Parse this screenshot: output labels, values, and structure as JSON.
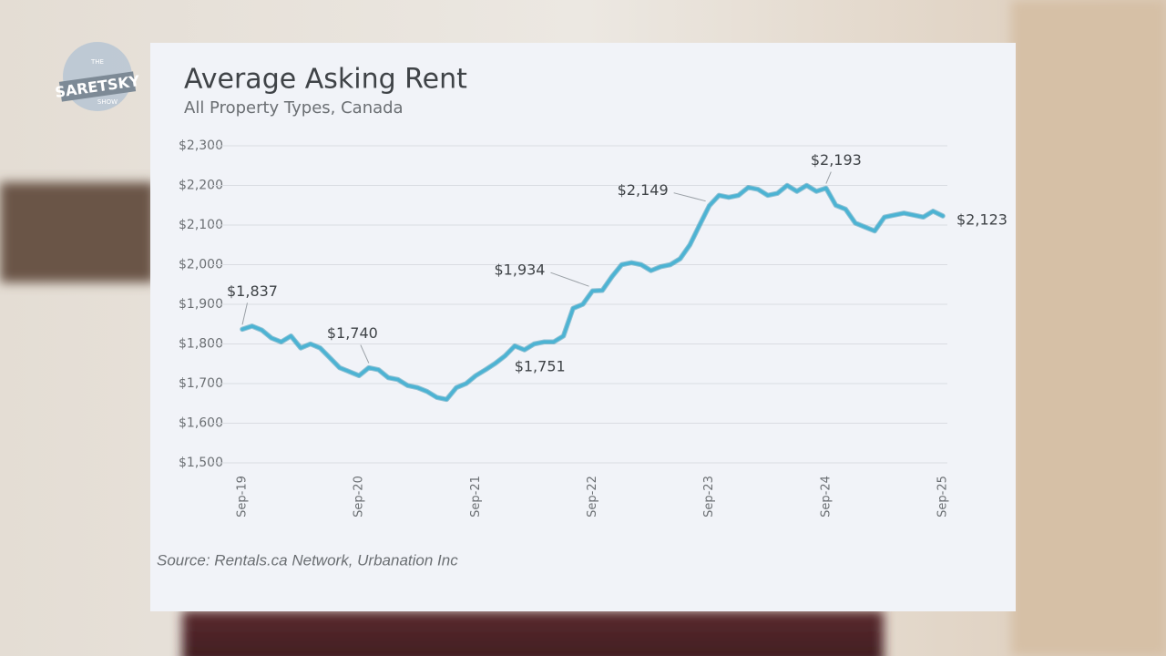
{
  "logo": {
    "top": "THE",
    "name": "SARETSKY",
    "bottom": "SHOW"
  },
  "chart_data": {
    "type": "line",
    "title": "Average Asking Rent",
    "subtitle": "All Property Types, Canada",
    "source": "Source: Rentals.ca Network, Urbanation Inc",
    "categories": [
      "Sep-19",
      null,
      null,
      null,
      null,
      null,
      null,
      null,
      null,
      null,
      null,
      null,
      "Sep-20",
      null,
      null,
      null,
      null,
      null,
      null,
      null,
      null,
      null,
      null,
      null,
      "Sep-21",
      null,
      null,
      null,
      null,
      null,
      null,
      null,
      null,
      null,
      null,
      null,
      "Sep-22",
      null,
      null,
      null,
      null,
      null,
      null,
      null,
      null,
      null,
      null,
      null,
      "Sep-23",
      null,
      null,
      null,
      null,
      null,
      null,
      null,
      null,
      null,
      null,
      null,
      "Sep-24",
      null,
      null,
      null,
      null,
      null,
      null,
      null,
      null,
      null,
      null,
      null,
      "Sep-25"
    ],
    "series": [
      {
        "name": "Average Asking Rent",
        "color": "#4cb3d3",
        "values": [
          1837,
          1845,
          1835,
          1815,
          1805,
          1820,
          1790,
          1800,
          1790,
          1765,
          1740,
          1730,
          1720,
          1740,
          1735,
          1715,
          1710,
          1695,
          1690,
          1680,
          1665,
          1660,
          1690,
          1700,
          1720,
          1735,
          1751,
          1770,
          1795,
          1785,
          1800,
          1805,
          1805,
          1820,
          1890,
          1900,
          1934,
          1935,
          1970,
          2000,
          2005,
          2000,
          1985,
          1995,
          2000,
          2015,
          2050,
          2100,
          2149,
          2175,
          2170,
          2175,
          2195,
          2190,
          2175,
          2180,
          2200,
          2185,
          2200,
          2185,
          2193,
          2150,
          2140,
          2105,
          2095,
          2085,
          2120,
          2125,
          2130,
          2125,
          2120,
          2135,
          2123
        ],
        "value_labels": [
          "$1,837",
          null,
          null,
          null,
          null,
          null,
          null,
          null,
          null,
          null,
          null,
          null,
          null,
          "$1,740",
          null,
          null,
          null,
          null,
          null,
          null,
          null,
          null,
          null,
          null,
          null,
          null,
          "$1,751",
          null,
          null,
          null,
          null,
          null,
          null,
          null,
          null,
          null,
          "$1,934",
          null,
          null,
          null,
          null,
          null,
          null,
          null,
          null,
          null,
          null,
          null,
          "$2,149",
          null,
          null,
          null,
          null,
          null,
          null,
          null,
          null,
          null,
          null,
          null,
          "$2,193",
          null,
          null,
          null,
          null,
          null,
          null,
          null,
          null,
          null,
          null,
          null,
          "$2,123"
        ]
      }
    ],
    "ylim": [
      1500,
      2300
    ],
    "yticks": [
      {
        "value": 1500,
        "label": "$1,500"
      },
      {
        "value": 1600,
        "label": "$1,600"
      },
      {
        "value": 1700,
        "label": "$1,700"
      },
      {
        "value": 1800,
        "label": "$1,800"
      },
      {
        "value": 1900,
        "label": "$1,900"
      },
      {
        "value": 2000,
        "label": "$2,000"
      },
      {
        "value": 2100,
        "label": "$2,100"
      },
      {
        "value": 2200,
        "label": "$2,200"
      },
      {
        "value": 2300,
        "label": "$2,300"
      }
    ],
    "grid": true
  }
}
